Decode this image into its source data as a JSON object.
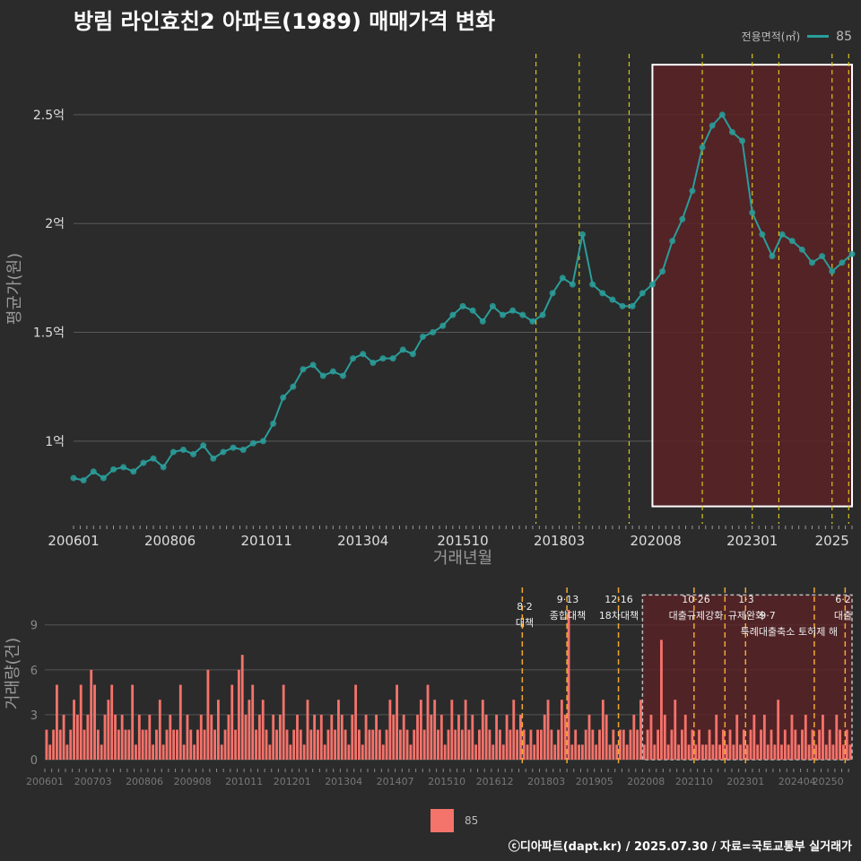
{
  "title": "방림 라인효친2 아파트(1989) 매매가격 변화",
  "legend_top": {
    "label": "전용면적(㎡)",
    "value": "85"
  },
  "legend_bottom": {
    "value": "85"
  },
  "footer": "ⓒ디아파트(dapt.kr) / 2025.07.30 / 자료=국토교통부 실거래가",
  "colors": {
    "background": "#2b2b2b",
    "line": "#2a9d9a",
    "bar": "#f4736b",
    "highlight": "#5a2226",
    "event_line": "#d9c61a",
    "event_line_bottom": "#f0a830"
  },
  "chart_data": [
    {
      "type": "line",
      "title": "방림 라인효친2 아파트(1989) 매매가격 변화",
      "xlabel": "거래년월",
      "ylabel": "평균가(원)",
      "x_ticks": [
        "200601",
        "200806",
        "201011",
        "201304",
        "201510",
        "201803",
        "202008",
        "202301",
        "2025"
      ],
      "y_ticks": [
        {
          "value": 1.0,
          "label": "1억"
        },
        {
          "value": 1.5,
          "label": "1.5억"
        },
        {
          "value": 2.0,
          "label": "2억"
        },
        {
          "value": 2.5,
          "label": "2.5억"
        }
      ],
      "x_range": [
        "2006-01",
        "2025-07"
      ],
      "y_range": [
        0.62,
        2.78
      ],
      "unit": "억원",
      "event_lines": [
        "2017-08",
        "2018-09",
        "2019-12",
        "2021-10",
        "2023-01",
        "2023-09",
        "2025-01",
        "2025-06"
      ],
      "highlight": {
        "x_start": "2020-07",
        "x_end": "2025-07",
        "y_min": 0.7,
        "y_max": 2.73
      },
      "series": [
        {
          "name": "85",
          "points": [
            [
              "2006-01",
              0.83
            ],
            [
              "2006-04",
              0.82
            ],
            [
              "2006-07",
              0.86
            ],
            [
              "2006-10",
              0.83
            ],
            [
              "2007-01",
              0.87
            ],
            [
              "2007-04",
              0.88
            ],
            [
              "2007-07",
              0.86
            ],
            [
              "2007-10",
              0.9
            ],
            [
              "2008-01",
              0.92
            ],
            [
              "2008-04",
              0.88
            ],
            [
              "2008-07",
              0.95
            ],
            [
              "2008-10",
              0.96
            ],
            [
              "2009-01",
              0.94
            ],
            [
              "2009-04",
              0.98
            ],
            [
              "2009-07",
              0.92
            ],
            [
              "2009-10",
              0.95
            ],
            [
              "2010-01",
              0.97
            ],
            [
              "2010-04",
              0.96
            ],
            [
              "2010-07",
              0.99
            ],
            [
              "2010-10",
              1.0
            ],
            [
              "2011-01",
              1.08
            ],
            [
              "2011-04",
              1.2
            ],
            [
              "2011-07",
              1.25
            ],
            [
              "2011-10",
              1.33
            ],
            [
              "2012-01",
              1.35
            ],
            [
              "2012-04",
              1.3
            ],
            [
              "2012-07",
              1.32
            ],
            [
              "2012-10",
              1.3
            ],
            [
              "2013-01",
              1.38
            ],
            [
              "2013-04",
              1.4
            ],
            [
              "2013-07",
              1.36
            ],
            [
              "2013-10",
              1.38
            ],
            [
              "2014-01",
              1.38
            ],
            [
              "2014-04",
              1.42
            ],
            [
              "2014-07",
              1.4
            ],
            [
              "2014-10",
              1.48
            ],
            [
              "2015-01",
              1.5
            ],
            [
              "2015-04",
              1.53
            ],
            [
              "2015-07",
              1.58
            ],
            [
              "2015-10",
              1.62
            ],
            [
              "2016-01",
              1.6
            ],
            [
              "2016-04",
              1.55
            ],
            [
              "2016-07",
              1.62
            ],
            [
              "2016-10",
              1.58
            ],
            [
              "2017-01",
              1.6
            ],
            [
              "2017-04",
              1.58
            ],
            [
              "2017-07",
              1.55
            ],
            [
              "2017-10",
              1.58
            ],
            [
              "2018-01",
              1.68
            ],
            [
              "2018-04",
              1.75
            ],
            [
              "2018-07",
              1.72
            ],
            [
              "2018-10",
              1.95
            ],
            [
              "2019-01",
              1.72
            ],
            [
              "2019-04",
              1.68
            ],
            [
              "2019-07",
              1.65
            ],
            [
              "2019-10",
              1.62
            ],
            [
              "2020-01",
              1.62
            ],
            [
              "2020-04",
              1.68
            ],
            [
              "2020-07",
              1.72
            ],
            [
              "2020-10",
              1.78
            ],
            [
              "2021-01",
              1.92
            ],
            [
              "2021-04",
              2.02
            ],
            [
              "2021-07",
              2.15
            ],
            [
              "2021-10",
              2.35
            ],
            [
              "2022-01",
              2.45
            ],
            [
              "2022-04",
              2.5
            ],
            [
              "2022-07",
              2.42
            ],
            [
              "2022-10",
              2.38
            ],
            [
              "2023-01",
              2.05
            ],
            [
              "2023-04",
              1.95
            ],
            [
              "2023-07",
              1.85
            ],
            [
              "2023-10",
              1.95
            ],
            [
              "2024-01",
              1.92
            ],
            [
              "2024-04",
              1.88
            ],
            [
              "2024-07",
              1.82
            ],
            [
              "2024-10",
              1.85
            ],
            [
              "2025-01",
              1.78
            ],
            [
              "2025-04",
              1.82
            ],
            [
              "2025-07",
              1.86
            ]
          ]
        }
      ]
    },
    {
      "type": "bar",
      "xlabel": "",
      "ylabel": "거래량(건)",
      "x_ticks": [
        "200601",
        "200703",
        "200806",
        "200908",
        "201011",
        "201201",
        "201304",
        "201407",
        "201510",
        "201612",
        "201803",
        "201905",
        "202008",
        "202110",
        "202301",
        "202404",
        "20250"
      ],
      "y_ticks": [
        0,
        3,
        6,
        9
      ],
      "y_range": [
        0,
        11.5
      ],
      "x_range": [
        "2006-01",
        "2025-07"
      ],
      "highlight": {
        "x_start": "2020-07",
        "x_end": "2025-07",
        "y_min": 0,
        "y_max": 11
      },
      "event_lines": [
        "2017-08",
        "2018-09",
        "2019-12",
        "2021-10",
        "2022-07",
        "2023-01",
        "2024-09",
        "2025-06"
      ],
      "annotations": [
        {
          "date": "8·2",
          "text": "대책"
        },
        {
          "date": "9·13",
          "text": "종합대책"
        },
        {
          "date": "12·16",
          "text": "18차대책"
        },
        {
          "date": "10·26",
          "text": "대출규제강화"
        },
        {
          "date": "1·3",
          "text": "규제완화"
        },
        {
          "date": "9·7",
          "text": "특례대출축소"
        },
        {
          "date": "",
          "text": "토허제 해"
        },
        {
          "date": "6·2",
          "text": "대출"
        }
      ],
      "series": [
        {
          "name": "85",
          "values_by_year": [
            {
              "year": 2006,
              "values": [
                2,
                1,
                2,
                5,
                2,
                3,
                1,
                2,
                4,
                3,
                5,
                2
              ]
            },
            {
              "year": 2007,
              "values": [
                3,
                6,
                5,
                2,
                1,
                3,
                4,
                5,
                3,
                2,
                3,
                2
              ]
            },
            {
              "year": 2008,
              "values": [
                2,
                5,
                1,
                3,
                2,
                2,
                3,
                1,
                2,
                4,
                1,
                2
              ]
            },
            {
              "year": 2009,
              "values": [
                3,
                2,
                2,
                5,
                1,
                3,
                2,
                1,
                2,
                3,
                2,
                6
              ]
            },
            {
              "year": 2010,
              "values": [
                3,
                2,
                4,
                1,
                2,
                3,
                5,
                2,
                6,
                7,
                3,
                4
              ]
            },
            {
              "year": 2011,
              "values": [
                5,
                2,
                3,
                4,
                2,
                1,
                3,
                2,
                3,
                5,
                2,
                1
              ]
            },
            {
              "year": 2012,
              "values": [
                2,
                3,
                2,
                1,
                4,
                2,
                3,
                2,
                3,
                1,
                2,
                3
              ]
            },
            {
              "year": 2013,
              "values": [
                2,
                4,
                3,
                2,
                1,
                3,
                5,
                2,
                1,
                3,
                2,
                2
              ]
            },
            {
              "year": 2014,
              "values": [
                3,
                2,
                1,
                2,
                4,
                3,
                5,
                2,
                3,
                2,
                1,
                2
              ]
            },
            {
              "year": 2015,
              "values": [
                3,
                4,
                2,
                5,
                3,
                4,
                2,
                3,
                1,
                2,
                4,
                2
              ]
            },
            {
              "year": 2016,
              "values": [
                3,
                2,
                4,
                2,
                3,
                1,
                2,
                4,
                3,
                2,
                1,
                3
              ]
            },
            {
              "year": 2017,
              "values": [
                2,
                1,
                3,
                2,
                4,
                2,
                3,
                2,
                1,
                2,
                1,
                2
              ]
            },
            {
              "year": 2018,
              "values": [
                2,
                3,
                4,
                2,
                1,
                2,
                4,
                3,
                10,
                1,
                2,
                1
              ]
            },
            {
              "year": 2019,
              "values": [
                1,
                2,
                3,
                2,
                1,
                2,
                4,
                3,
                1,
                2,
                1,
                2
              ]
            },
            {
              "year": 2020,
              "values": [
                2,
                1,
                2,
                3,
                2,
                4,
                1,
                2,
                3,
                1,
                2,
                8
              ]
            },
            {
              "year": 2021,
              "values": [
                3,
                1,
                2,
                4,
                1,
                2,
                3,
                1,
                2,
                1,
                2,
                1
              ]
            },
            {
              "year": 2022,
              "values": [
                1,
                2,
                1,
                3,
                1,
                2,
                1,
                2,
                1,
                3,
                1,
                2
              ]
            },
            {
              "year": 2023,
              "values": [
                1,
                2,
                3,
                1,
                2,
                3,
                1,
                2,
                1,
                4,
                1,
                2
              ]
            },
            {
              "year": 2024,
              "values": [
                1,
                3,
                2,
                1,
                2,
                3,
                1,
                2,
                1,
                2,
                3,
                1
              ]
            },
            {
              "year": 2025,
              "values": [
                2,
                1,
                3,
                2,
                1,
                2,
                1
              ]
            }
          ]
        }
      ]
    }
  ]
}
